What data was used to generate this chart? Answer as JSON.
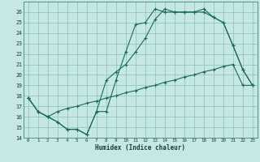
{
  "xlabel": "Humidex (Indice chaleur)",
  "bg_color": "#c5e8e5",
  "grid_color": "#8abfbc",
  "line_color": "#1a6b5a",
  "xlim": [
    -0.5,
    23.5
  ],
  "ylim": [
    14,
    27
  ],
  "yticks": [
    14,
    15,
    16,
    17,
    18,
    19,
    20,
    21,
    22,
    23,
    24,
    25,
    26
  ],
  "xticks": [
    0,
    1,
    2,
    3,
    4,
    5,
    6,
    7,
    8,
    9,
    10,
    11,
    12,
    13,
    14,
    15,
    16,
    17,
    18,
    19,
    20,
    21,
    22,
    23
  ],
  "line1_x": [
    0,
    1,
    2,
    3,
    4,
    5,
    6,
    7,
    8,
    9,
    10,
    11,
    12,
    13,
    14,
    15,
    16,
    17,
    18,
    19,
    20,
    21,
    22,
    23
  ],
  "line1_y": [
    17.8,
    16.5,
    16.0,
    15.5,
    14.8,
    14.8,
    14.3,
    16.5,
    16.5,
    19.5,
    22.2,
    24.8,
    25.0,
    26.3,
    26.0,
    26.0,
    26.0,
    26.0,
    26.0,
    25.5,
    25.0,
    22.8,
    20.5,
    19.0
  ],
  "line2_x": [
    0,
    1,
    2,
    3,
    4,
    5,
    6,
    7,
    8,
    9,
    10,
    11,
    12,
    13,
    14,
    15,
    16,
    17,
    18,
    19,
    20,
    21,
    22,
    23
  ],
  "line2_y": [
    17.8,
    16.5,
    16.0,
    15.5,
    14.8,
    14.8,
    14.3,
    16.5,
    19.5,
    20.3,
    21.0,
    22.2,
    23.5,
    25.3,
    26.3,
    26.0,
    26.0,
    26.0,
    26.3,
    25.5,
    25.0,
    22.8,
    20.5,
    19.0
  ],
  "line3_x": [
    0,
    1,
    2,
    3,
    4,
    5,
    6,
    7,
    8,
    9,
    10,
    11,
    12,
    13,
    14,
    15,
    16,
    17,
    18,
    19,
    20,
    21,
    22,
    23
  ],
  "line3_y": [
    17.8,
    16.5,
    16.0,
    16.5,
    16.8,
    17.0,
    17.3,
    17.5,
    17.8,
    18.0,
    18.3,
    18.5,
    18.8,
    19.0,
    19.3,
    19.5,
    19.8,
    20.0,
    20.3,
    20.5,
    20.8,
    21.0,
    19.0,
    19.0
  ]
}
